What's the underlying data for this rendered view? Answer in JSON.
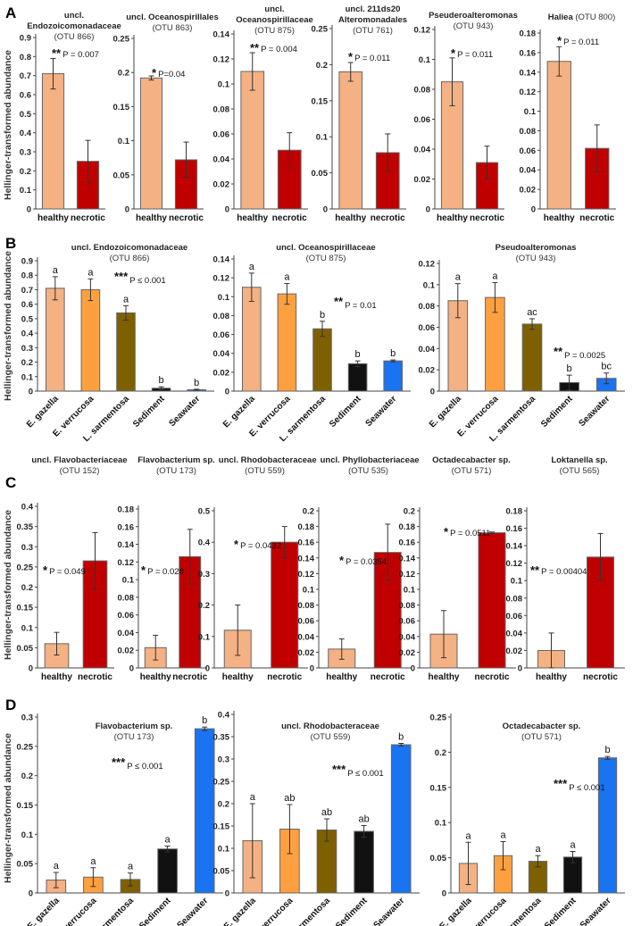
{
  "chart_data": {
    "type": "bar",
    "ylabel": "Hellinger-transformed abundance",
    "colors": {
      "healthy": "#F4B183",
      "necrotic": "#C00000",
      "E. gazella": "#F4B183",
      "E. verrucosa": "#FFA040",
      "L. sarmentosa": "#7F6000",
      "Sediment": "#111111",
      "Seawater": "#1A73F0"
    },
    "panels": [
      {
        "label": "A",
        "charts": [
          {
            "title": [
              [
                {
                  "t": "uncl."
                }
              ],
              [
                {
                  "t": "Endozoicomonadaceae",
                  "i": true
                }
              ],
              [
                {
                  "t": "(OTU 866)",
                  "o": true
                }
              ]
            ],
            "ylim": [
              0,
              0.9
            ],
            "step": 0.1,
            "categories": [
              "healthy",
              "necrotic"
            ],
            "values": [
              0.71,
              0.25
            ],
            "err": [
              0.08,
              0.11
            ],
            "stars": "**",
            "p": "P = 0.007"
          },
          {
            "title": [
              [
                {
                  "t": "uncl. "
                },
                {
                  "t": "Oceanospirillales",
                  "i": true
                }
              ],
              [
                {
                  "t": "(OTU 863)",
                  "o": true
                }
              ]
            ],
            "ylim": [
              0,
              0.25
            ],
            "step": 0.05,
            "categories": [
              "healthy",
              "necrotic"
            ],
            "values": [
              0.192,
              0.072
            ],
            "err": [
              0.003,
              0.026
            ],
            "stars": "*",
            "p": "P=0.04"
          },
          {
            "title": [
              [
                {
                  "t": "uncl."
                }
              ],
              [
                {
                  "t": "Oceanospirillaceae",
                  "i": true
                }
              ],
              [
                {
                  "t": "(OTU 875)",
                  "o": true
                }
              ]
            ],
            "ylim": [
              0,
              0.14
            ],
            "step": 0.02,
            "categories": [
              "healthy",
              "necrotic"
            ],
            "values": [
              0.11,
              0.047
            ],
            "err": [
              0.015,
              0.014
            ],
            "stars": "**",
            "p": "P = 0.004"
          },
          {
            "title": [
              [
                {
                  "t": "uncl. 211ds20"
                }
              ],
              [
                {
                  "t": "Alteromonadales",
                  "i": true
                }
              ],
              [
                {
                  "t": "(OTU 761)",
                  "o": true
                }
              ]
            ],
            "ylim": [
              0,
              0.25
            ],
            "step": 0.05,
            "categories": [
              "healthy",
              "necrotic"
            ],
            "values": [
              0.19,
              0.078
            ],
            "err": [
              0.013,
              0.026
            ],
            "stars": "*",
            "p": "P = 0.011"
          },
          {
            "title": [
              [
                {
                  "t": "Pseuderoalteromonas",
                  "i": true
                }
              ],
              [
                {
                  "t": "(OTU 943)",
                  "o": true
                }
              ]
            ],
            "ylim": [
              0,
              0.12
            ],
            "step": 0.02,
            "categories": [
              "healthy",
              "necrotic"
            ],
            "values": [
              0.085,
              0.031
            ],
            "err": [
              0.016,
              0.011
            ],
            "stars": "*",
            "p": "P = 0.011"
          },
          {
            "title": [
              [
                {
                  "t": "Haliea",
                  "i": true
                },
                {
                  "t": " (OTU 800)",
                  "o": true
                }
              ]
            ],
            "ylim": [
              0,
              0.18
            ],
            "step": 0.02,
            "categories": [
              "healthy",
              "necrotic"
            ],
            "values": [
              0.151,
              0.062
            ],
            "err": [
              0.015,
              0.024
            ],
            "stars": "*",
            "p": "P = 0.011"
          }
        ]
      },
      {
        "label": "B",
        "charts": [
          {
            "title": [
              [
                {
                  "t": "uncl. Endozoicomonadaceae",
                  "i": true
                }
              ],
              [
                {
                  "t": "(OTU 866)",
                  "o": true
                }
              ]
            ],
            "ylim": [
              0,
              0.9
            ],
            "step": 0.1,
            "categories": [
              "E. gazella",
              "E. verrucosa",
              "L. sarmentosa",
              "Sediment",
              "Seawater"
            ],
            "values": [
              0.71,
              0.7,
              0.54,
              0.02,
              0.01
            ],
            "err": [
              0.08,
              0.075,
              0.05,
              0.01,
              0.003
            ],
            "letters": [
              "a",
              "a",
              "a",
              "b",
              "b"
            ],
            "stars": "***",
            "p": "P ≤ 0.001"
          },
          {
            "title": [
              [
                {
                  "t": "uncl. "
                },
                {
                  "t": "Oceanospirillaceae",
                  "i": true
                }
              ],
              [
                {
                  "t": "(OTU 875)",
                  "o": true
                }
              ]
            ],
            "ylim": [
              0,
              0.14
            ],
            "step": 0.02,
            "categories": [
              "E. gazella",
              "E. verrucosa",
              "L. sarmentosa",
              "Sediment",
              "Seawater"
            ],
            "values": [
              0.11,
              0.103,
              0.066,
              0.029,
              0.032
            ],
            "err": [
              0.015,
              0.011,
              0.008,
              0.003,
              0.001
            ],
            "letters": [
              "a",
              "a",
              "b",
              "b",
              "b"
            ],
            "stars": "**",
            "p": "P = 0.01"
          },
          {
            "title": [
              [
                {
                  "t": "Pseudoalteromonas",
                  "i": true
                }
              ],
              [
                {
                  "t": "(OTU 943)",
                  "o": true
                }
              ]
            ],
            "ylim": [
              0,
              0.12
            ],
            "step": 0.02,
            "categories": [
              "E. gazella",
              "E. verrucosa",
              "L. sarmentosa",
              "Sediment",
              "Seawater"
            ],
            "values": [
              0.085,
              0.088,
              0.063,
              0.008,
              0.012
            ],
            "err": [
              0.016,
              0.014,
              0.005,
              0.007,
              0.005
            ],
            "letters": [
              "a",
              "a",
              "ac",
              "b",
              "bc"
            ],
            "stars": "**",
            "p": "P = 0.0025"
          }
        ]
      },
      {
        "label": "C",
        "charts": [
          {
            "title": [
              [
                {
                  "t": "uncl. "
                },
                {
                  "t": "Flavobacteriaceae",
                  "i": true
                }
              ],
              [
                {
                  "t": "(OTU 152)",
                  "o": true
                }
              ]
            ],
            "ylim": [
              0,
              0.4
            ],
            "step": 0.05,
            "categories": [
              "healthy",
              "necrotic"
            ],
            "values": [
              0.06,
              0.265
            ],
            "err": [
              0.028,
              0.07
            ],
            "stars": "*",
            "p": "P = 0.049"
          },
          {
            "title": [
              [
                {
                  "t": "Flavobacterium",
                  "i": true
                },
                {
                  "t": " sp."
                }
              ],
              [
                {
                  "t": "(OTU 173)",
                  "o": true
                }
              ]
            ],
            "ylim": [
              0,
              0.18
            ],
            "step": 0.02,
            "categories": [
              "healthy",
              "necrotic"
            ],
            "values": [
              0.023,
              0.126
            ],
            "err": [
              0.014,
              0.031
            ],
            "stars": "*",
            "p": "P = 0.028"
          },
          {
            "title": [
              [
                {
                  "t": "uncl. "
                },
                {
                  "t": "Rhodobacteraceae",
                  "i": true
                }
              ],
              [
                {
                  "t": "(OTU 559)",
                  "o": true
                }
              ]
            ],
            "ylim": [
              0,
              0.5
            ],
            "step": 0.1,
            "categories": [
              "healthy",
              "necrotic"
            ],
            "values": [
              0.12,
              0.4
            ],
            "err": [
              0.08,
              0.05
            ],
            "stars": "*",
            "p": "P = 0.0432"
          },
          {
            "title": [
              [
                {
                  "t": "uncl. "
                },
                {
                  "t": "Phyllobacteriaceae",
                  "i": true
                }
              ],
              [
                {
                  "t": "(OTU 535)",
                  "o": true
                }
              ]
            ],
            "ylim": [
              0,
              0.2
            ],
            "step": 0.02,
            "categories": [
              "healthy",
              "necrotic"
            ],
            "values": [
              0.024,
              0.147
            ],
            "err": [
              0.013,
              0.036
            ],
            "stars": "*",
            "p": "P = 0.0354"
          },
          {
            "title": [
              [
                {
                  "t": "Octadecabacter",
                  "i": true
                },
                {
                  "t": " sp."
                }
              ],
              [
                {
                  "t": "(OTU 571)",
                  "o": true
                }
              ]
            ],
            "ylim": [
              0,
              0.2
            ],
            "step": 0.02,
            "categories": [
              "healthy",
              "necrotic"
            ],
            "values": [
              0.043,
              0.172
            ],
            "err": [
              0.03,
              0.001
            ],
            "stars": "*",
            "p": "P = 0.0511"
          },
          {
            "title": [
              [
                {
                  "t": "Loktanella",
                  "i": true
                },
                {
                  "t": " sp."
                }
              ],
              [
                {
                  "t": "(OTU 565)",
                  "o": true
                }
              ]
            ],
            "ylim": [
              0,
              0.18
            ],
            "step": 0.02,
            "categories": [
              "healthy",
              "necrotic"
            ],
            "values": [
              0.02,
              0.127
            ],
            "err": [
              0.02,
              0.027
            ],
            "stars": "**",
            "p": "P = 0.00404"
          }
        ]
      },
      {
        "label": "D",
        "charts": [
          {
            "title": [
              [
                {
                  "t": "Flavobacterium",
                  "i": true
                },
                {
                  "t": " sp."
                }
              ],
              [
                {
                  "t": "(OTU 173)",
                  "o": true
                }
              ]
            ],
            "ylim": [
              0,
              0.3
            ],
            "step": 0.05,
            "categories": [
              "E. gazella",
              "E. verrucosa",
              "L. sarmentosa",
              "Sediment",
              "Seawater"
            ],
            "values": [
              0.022,
              0.027,
              0.023,
              0.075,
              0.28
            ],
            "err": [
              0.013,
              0.016,
              0.011,
              0.005,
              0.003
            ],
            "letters": [
              "a",
              "a",
              "a",
              "a",
              "b"
            ],
            "stars": "***",
            "p": "P ≤ 0.001"
          },
          {
            "title": [
              [
                {
                  "t": "uncl. "
                },
                {
                  "t": "Rhodobacteraceae",
                  "i": true
                }
              ],
              [
                {
                  "t": "(OTU 559)",
                  "o": true
                }
              ]
            ],
            "ylim": [
              0,
              0.4
            ],
            "step": 0.05,
            "categories": [
              "E. gazella",
              "E. verrucosa",
              "L. sarmentosa",
              "Sediment",
              "Seawater"
            ],
            "values": [
              0.117,
              0.143,
              0.141,
              0.138,
              0.332
            ],
            "err": [
              0.083,
              0.055,
              0.025,
              0.013,
              0.003
            ],
            "letters": [
              "a",
              "ab",
              "ab",
              "ab",
              "b"
            ],
            "stars": "***",
            "p": "P ≤ 0.001"
          },
          {
            "title": [
              [
                {
                  "t": "Octadecabacter",
                  "i": true
                },
                {
                  "t": " sp."
                }
              ],
              [
                {
                  "t": "(OTU 571)",
                  "o": true
                }
              ]
            ],
            "ylim": [
              0,
              0.25
            ],
            "step": 0.05,
            "categories": [
              "E. gazella",
              "E. verrucosa",
              "L. sarmentosa",
              "Sediment",
              "Seawater"
            ],
            "values": [
              0.042,
              0.053,
              0.045,
              0.051,
              0.192
            ],
            "err": [
              0.03,
              0.02,
              0.008,
              0.008,
              0.002
            ],
            "letters": [
              "a",
              "a",
              "a",
              "a",
              "b"
            ],
            "stars": "***",
            "p": "P ≤ 0.001"
          }
        ]
      }
    ]
  }
}
